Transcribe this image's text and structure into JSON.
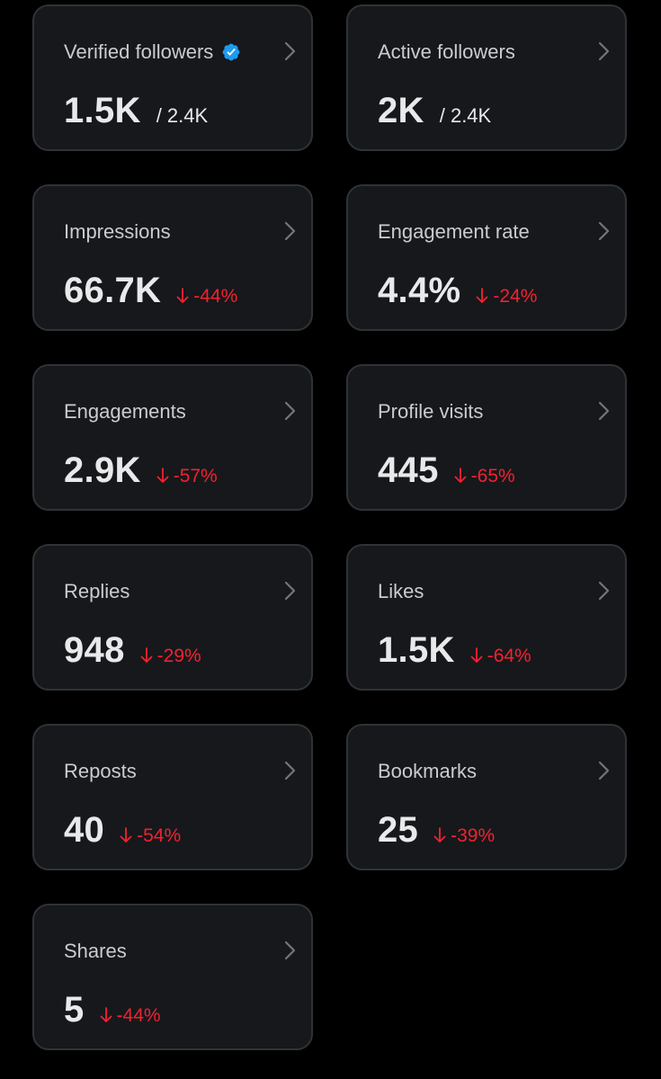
{
  "colors": {
    "background": "#000000",
    "card_background": "#16181c",
    "card_border": "#2f3336",
    "label_text": "#c9ccd0",
    "value_text": "#e7e9ea",
    "negative_change": "#f4212e",
    "verified_badge": "#1d9bf0"
  },
  "cards": [
    {
      "title": "Verified followers",
      "value": "1.5K",
      "sub_total": "/ 2.4K",
      "icon": "verified-badge-icon"
    },
    {
      "title": "Active followers",
      "value": "2K",
      "sub_total": "/ 2.4K"
    },
    {
      "title": "Impressions",
      "value": "66.7K",
      "change": "-44%",
      "change_icon": "arrow-down-icon"
    },
    {
      "title": "Engagement rate",
      "value": "4.4%",
      "change": "-24%",
      "change_icon": "arrow-down-icon"
    },
    {
      "title": "Engagements",
      "value": "2.9K",
      "change": "-57%",
      "change_icon": "arrow-down-icon"
    },
    {
      "title": "Profile visits",
      "value": "445",
      "change": "-65%",
      "change_icon": "arrow-down-icon"
    },
    {
      "title": "Replies",
      "value": "948",
      "change": "-29%",
      "change_icon": "arrow-down-icon"
    },
    {
      "title": "Likes",
      "value": "1.5K",
      "change": "-64%",
      "change_icon": "arrow-down-icon"
    },
    {
      "title": "Reposts",
      "value": "40",
      "change": "-54%",
      "change_icon": "arrow-down-icon"
    },
    {
      "title": "Bookmarks",
      "value": "25",
      "change": "-39%",
      "change_icon": "arrow-down-icon"
    },
    {
      "title": "Shares",
      "value": "5",
      "change": "-44%",
      "change_icon": "arrow-down-icon"
    }
  ]
}
